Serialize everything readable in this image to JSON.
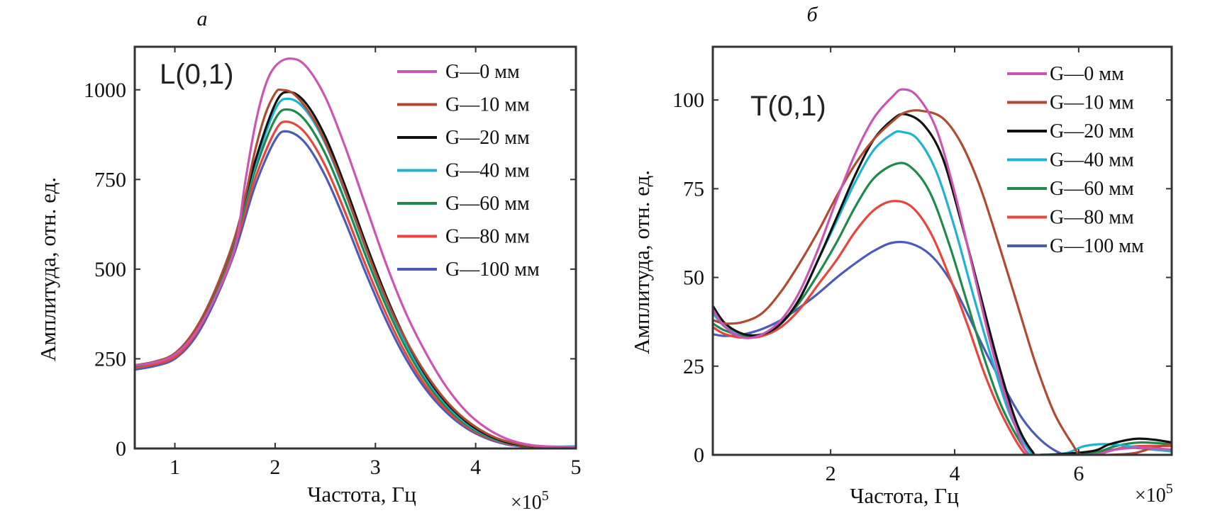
{
  "chart_data": [
    {
      "type": "line",
      "panel_label": "а",
      "annotation": "L(0,1)",
      "xlabel": "Частота, Гц",
      "x_multiplier": "×10",
      "x_multiplier_exp": "5",
      "ylabel": "Амплитуда, отн. ед.",
      "xlim": [
        0.6,
        5
      ],
      "ylim": [
        0,
        1120
      ],
      "xticks": [
        1,
        2,
        3,
        4,
        5
      ],
      "xtick_labels": [
        "1",
        "2",
        "3",
        "4",
        "5"
      ],
      "yticks": [
        0,
        250,
        500,
        750,
        1000
      ],
      "ytick_labels": [
        "0",
        "250",
        "500",
        "750",
        "1000"
      ],
      "grid": false,
      "legend_position": "top-right",
      "series": [
        {
          "name": "G—0 мм",
          "color": "#cc55b4",
          "x": [
            0.6,
            0.8,
            1.0,
            1.2,
            1.4,
            1.6,
            1.7,
            1.8,
            1.9,
            2.0,
            2.14,
            2.3,
            2.5,
            2.7,
            2.9,
            3.1,
            3.3,
            3.5,
            3.7,
            3.9,
            4.1,
            4.3,
            4.5,
            4.7,
            5.0
          ],
          "y": [
            232,
            240,
            262,
            320,
            420,
            560,
            740,
            900,
            1010,
            1065,
            1087,
            1068,
            980,
            840,
            680,
            520,
            380,
            268,
            175,
            105,
            58,
            28,
            12,
            6,
            4
          ]
        },
        {
          "name": "G—10 мм",
          "color": "#b04a30",
          "x": [
            0.6,
            0.8,
            1.0,
            1.2,
            1.4,
            1.6,
            1.7,
            1.8,
            1.9,
            2.0,
            2.06,
            2.2,
            2.4,
            2.6,
            2.8,
            3.0,
            3.2,
            3.4,
            3.6,
            3.8,
            4.0,
            4.2,
            4.4,
            4.6,
            5.0
          ],
          "y": [
            232,
            242,
            265,
            330,
            440,
            590,
            700,
            830,
            930,
            990,
            1000,
            985,
            910,
            790,
            640,
            490,
            360,
            255,
            170,
            105,
            60,
            30,
            14,
            6,
            3
          ]
        },
        {
          "name": "G—20 мм",
          "color": "#111111",
          "x": [
            0.6,
            0.8,
            1.0,
            1.2,
            1.4,
            1.6,
            1.8,
            2.0,
            2.13,
            2.3,
            2.5,
            2.7,
            2.9,
            3.1,
            3.3,
            3.5,
            3.7,
            3.9,
            4.1,
            4.3,
            4.5,
            4.7,
            5.0
          ],
          "y": [
            232,
            242,
            265,
            330,
            440,
            590,
            800,
            960,
            994,
            965,
            870,
            730,
            575,
            430,
            305,
            205,
            130,
            76,
            40,
            18,
            8,
            4,
            3
          ]
        },
        {
          "name": "G—40 мм",
          "color": "#1fb3d2",
          "x": [
            0.6,
            0.8,
            1.0,
            1.2,
            1.4,
            1.6,
            1.8,
            2.0,
            2.13,
            2.3,
            2.5,
            2.7,
            2.9,
            3.1,
            3.3,
            3.5,
            3.7,
            3.9,
            4.1,
            4.3,
            4.5,
            4.7,
            5.0
          ],
          "y": [
            232,
            242,
            265,
            330,
            440,
            588,
            790,
            945,
            975,
            945,
            850,
            712,
            560,
            418,
            295,
            198,
            125,
            72,
            38,
            17,
            8,
            5,
            6
          ]
        },
        {
          "name": "G—60 мм",
          "color": "#1f8a4c",
          "x": [
            0.6,
            0.8,
            1.0,
            1.2,
            1.4,
            1.6,
            1.8,
            2.0,
            2.13,
            2.3,
            2.5,
            2.7,
            2.9,
            3.1,
            3.3,
            3.5,
            3.7,
            3.9,
            4.1,
            4.3,
            4.5,
            4.7,
            5.0
          ],
          "y": [
            230,
            240,
            262,
            326,
            434,
            580,
            775,
            918,
            945,
            915,
            822,
            688,
            540,
            402,
            283,
            188,
            118,
            68,
            35,
            16,
            7,
            4,
            3
          ]
        },
        {
          "name": "G—80 мм",
          "color": "#e8453c",
          "x": [
            0.6,
            0.8,
            1.0,
            1.2,
            1.4,
            1.6,
            1.8,
            2.0,
            2.12,
            2.3,
            2.5,
            2.7,
            2.9,
            3.1,
            3.3,
            3.5,
            3.7,
            3.9,
            4.1,
            4.3,
            4.5,
            4.7,
            5.0
          ],
          "y": [
            225,
            235,
            255,
            316,
            422,
            565,
            752,
            885,
            911,
            880,
            788,
            657,
            513,
            380,
            266,
            176,
            110,
            63,
            32,
            14,
            6,
            3,
            2
          ]
        },
        {
          "name": "G—100 мм",
          "color": "#4a5bb8",
          "x": [
            0.6,
            0.8,
            1.0,
            1.2,
            1.4,
            1.6,
            1.8,
            2.0,
            2.12,
            2.3,
            2.5,
            2.7,
            2.9,
            3.1,
            3.3,
            3.5,
            3.7,
            3.9,
            4.1,
            4.3,
            4.5,
            4.7,
            5.0
          ],
          "y": [
            220,
            230,
            250,
            308,
            412,
            550,
            732,
            860,
            884,
            852,
            760,
            632,
            492,
            362,
            252,
            166,
            103,
            58,
            29,
            12,
            5,
            3,
            2
          ]
        }
      ]
    },
    {
      "type": "line",
      "panel_label": "б",
      "annotation": "T(0,1)",
      "xlabel": "Частота, Гц",
      "x_multiplier": "×10",
      "x_multiplier_exp": "5",
      "ylabel": "Амплитуда, отн. ед.",
      "xlim": [
        0.1,
        7.5
      ],
      "ylim": [
        0,
        115
      ],
      "xticks": [
        2,
        4,
        6
      ],
      "xtick_labels": [
        "2",
        "4",
        "6"
      ],
      "yticks": [
        0,
        25,
        50,
        75,
        100
      ],
      "ytick_labels": [
        "0",
        "25",
        "50",
        "75",
        "100"
      ],
      "grid": false,
      "legend_position": "top-right",
      "series": [
        {
          "name": "G—0 мм",
          "color": "#cc55b4",
          "x": [
            0.1,
            0.3,
            0.6,
            0.9,
            1.2,
            1.5,
            1.8,
            2.1,
            2.4,
            2.7,
            3.0,
            3.16,
            3.4,
            3.7,
            4.0,
            4.3,
            4.6,
            4.9,
            5.15,
            5.3,
            6.2,
            6.6,
            7.0,
            7.5
          ],
          "y": [
            41,
            36,
            33,
            34,
            38,
            46,
            58,
            72,
            85,
            95,
            101,
            103,
            101,
            92,
            74,
            52,
            30,
            12,
            1,
            0,
            0,
            1.5,
            2,
            1.5
          ]
        },
        {
          "name": "G—10 мм",
          "color": "#b04a30",
          "x": [
            0.1,
            0.3,
            0.6,
            0.9,
            1.2,
            1.5,
            1.8,
            2.1,
            2.4,
            2.7,
            3.0,
            3.2,
            3.45,
            3.8,
            4.1,
            4.4,
            4.7,
            5.0,
            5.3,
            5.6,
            5.9,
            6.05,
            6.5,
            6.9,
            7.2,
            7.5
          ],
          "y": [
            38,
            37,
            37.5,
            40,
            46,
            54,
            63,
            73,
            82,
            89,
            94,
            96.5,
            97,
            95,
            88,
            76,
            60,
            43,
            26,
            12,
            3,
            0,
            0,
            0.5,
            2,
            3
          ]
        },
        {
          "name": "G—20 мм",
          "color": "#111111",
          "x": [
            0.1,
            0.3,
            0.6,
            0.9,
            1.2,
            1.5,
            1.8,
            2.1,
            2.4,
            2.7,
            3.0,
            3.2,
            3.5,
            3.8,
            4.1,
            4.4,
            4.7,
            5.0,
            5.25,
            5.4,
            6.2,
            6.5,
            6.9,
            7.2,
            7.5
          ],
          "y": [
            42,
            37,
            34,
            34,
            37,
            44,
            55,
            67,
            79,
            89,
            94.5,
            96,
            93,
            84,
            66,
            46,
            26,
            9,
            1,
            0,
            1,
            3,
            4.5,
            4.3,
            3.5
          ]
        },
        {
          "name": "G—40 мм",
          "color": "#1fb3d2",
          "x": [
            0.1,
            0.3,
            0.6,
            0.9,
            1.2,
            1.5,
            1.8,
            2.1,
            2.4,
            2.7,
            3.0,
            3.15,
            3.4,
            3.7,
            4.0,
            4.3,
            4.6,
            4.9,
            5.25,
            5.4,
            5.8,
            6.1,
            6.5,
            7.0,
            7.5
          ],
          "y": [
            40,
            36,
            34,
            34,
            37,
            44,
            55,
            66,
            77,
            86,
            90.5,
            91,
            89,
            80,
            64,
            45,
            27,
            11,
            0,
            0,
            0.5,
            2.5,
            3,
            2,
            1
          ]
        },
        {
          "name": "G—60 мм",
          "color": "#1f8a4c",
          "x": [
            0.1,
            0.3,
            0.6,
            0.9,
            1.2,
            1.5,
            1.8,
            2.1,
            2.4,
            2.7,
            3.05,
            3.3,
            3.6,
            3.9,
            4.2,
            4.5,
            4.8,
            5.2,
            5.4,
            6.2,
            6.6,
            7.0,
            7.5
          ],
          "y": [
            37,
            35,
            33.5,
            34,
            37,
            43,
            51,
            60,
            70,
            78,
            82,
            81,
            74,
            60,
            43,
            26,
            12,
            0,
            0,
            0.5,
            2.5,
            3.5,
            3
          ]
        },
        {
          "name": "G—80 мм",
          "color": "#e8453c",
          "x": [
            0.1,
            0.3,
            0.6,
            0.9,
            1.2,
            1.5,
            1.8,
            2.1,
            2.4,
            2.7,
            3.0,
            3.3,
            3.6,
            3.9,
            4.2,
            4.5,
            4.8,
            5.15,
            5.4,
            6.3,
            6.7,
            7.0,
            7.5
          ],
          "y": [
            36,
            34,
            33,
            33.5,
            36,
            41,
            48,
            55,
            63,
            69,
            71.5,
            70,
            63,
            51,
            37,
            22,
            10,
            0,
            0,
            0.5,
            2,
            2.5,
            2.5
          ]
        },
        {
          "name": "G—100 мм",
          "color": "#4a5bb8",
          "x": [
            0.1,
            0.3,
            0.6,
            0.9,
            1.2,
            1.5,
            1.8,
            2.1,
            2.4,
            2.7,
            3.0,
            3.3,
            3.6,
            3.9,
            4.2,
            4.5,
            4.8,
            5.1,
            5.4,
            5.7,
            5.9,
            6.1,
            6.4,
            6.8,
            7.2,
            7.5
          ],
          "y": [
            34,
            33.5,
            34,
            35.5,
            38,
            41.5,
            45.5,
            50,
            54,
            57.5,
            59.8,
            59.5,
            56.5,
            50,
            40,
            29,
            19,
            10,
            4,
            0.5,
            0,
            0,
            1,
            2,
            1.5,
            1
          ]
        }
      ]
    }
  ]
}
